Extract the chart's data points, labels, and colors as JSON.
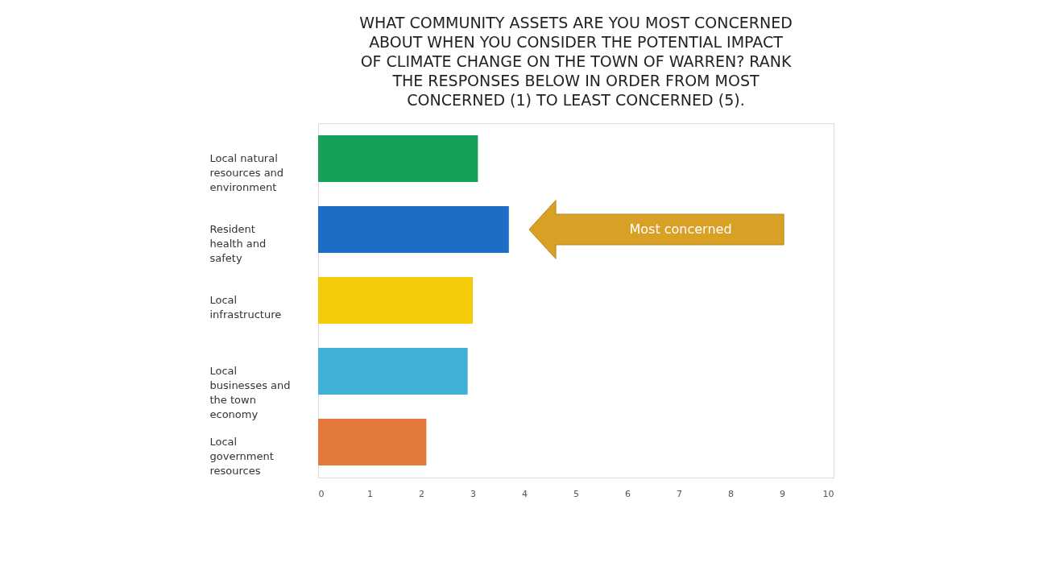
{
  "chart_data": {
    "type": "bar",
    "orientation": "horizontal",
    "title": "WHAT COMMUNITY ASSETS ARE YOU MOST CONCERNED ABOUT WHEN YOU CONSIDER THE POTENTIAL IMPACT OF CLIMATE CHANGE ON THE TOWN OF WARREN? RANK THE RESPONSES BELOW IN ORDER FROM MOST CONCERNED (1) TO LEAST CONCERNED (5).",
    "categories": [
      "Local natural resources and environment",
      "Resident health and safety",
      "Local infrastructure",
      "Local businesses and the town economy",
      "Local government resources"
    ],
    "values": [
      3.1,
      3.7,
      3.0,
      2.9,
      2.1
    ],
    "colors": [
      "#17a05a",
      "#1f6cc6",
      "#f5cb0a",
      "#3fb0d8",
      "#e3793c"
    ],
    "xlim": [
      0,
      10
    ],
    "xticks": [
      0,
      1,
      2,
      3,
      4,
      5,
      6,
      7,
      8,
      9,
      10
    ],
    "grid": false,
    "annotations": [
      "Most concerned"
    ]
  }
}
